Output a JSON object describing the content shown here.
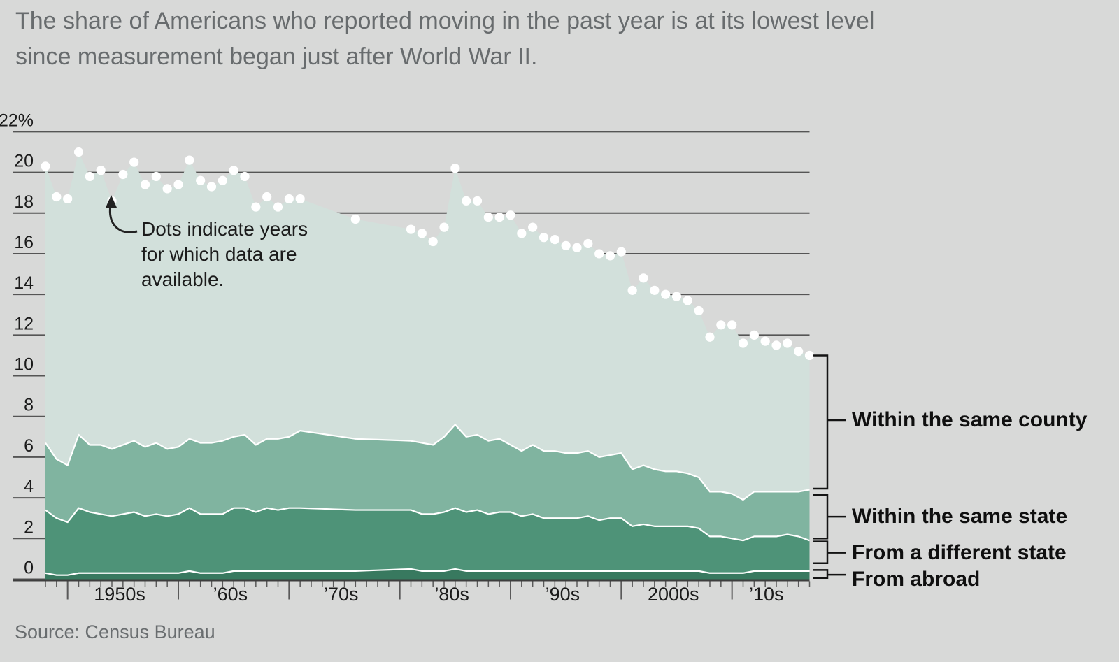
{
  "page": {
    "background_color": "#d8d9d8",
    "title": "The share of Americans who reported moving in the past year is at its lowest level\nsince measurement began just after World War II.",
    "source": "Source: Census Bureau"
  },
  "annotation": {
    "text": "Dots indicate years\nfor which data are\navailable."
  },
  "chart_data": {
    "type": "area",
    "stacked": true,
    "title": "The share of Americans who reported moving in the past year is at its lowest level since measurement began just after World War II.",
    "source": "Source: Census Bureau",
    "unit": "%",
    "grid": true,
    "legend_position": "right",
    "dots_note": "Dots indicate years for which data are available.",
    "x": [
      1948,
      1949,
      1950,
      1951,
      1952,
      1953,
      1954,
      1955,
      1956,
      1957,
      1958,
      1959,
      1960,
      1961,
      1962,
      1963,
      1964,
      1965,
      1966,
      1967,
      1968,
      1969,
      1970,
      1971,
      1972,
      1973,
      1974,
      1975,
      1976,
      1977,
      1978,
      1979,
      1980,
      1981,
      1982,
      1983,
      1984,
      1985,
      1986,
      1987,
      1988,
      1989,
      1990,
      1991,
      1992,
      1993,
      1994,
      1995,
      1996,
      1997,
      1998,
      1999,
      2000,
      2001,
      2002,
      2003,
      2004,
      2005,
      2006,
      2007,
      2008,
      2009,
      2010,
      2011,
      2012,
      2013,
      2014,
      2015,
      2016,
      2017
    ],
    "series": [
      {
        "name": "From abroad",
        "color": "#38795f",
        "values": [
          0.3,
          0.2,
          0.2,
          0.3,
          0.3,
          0.3,
          0.3,
          0.3,
          0.3,
          0.3,
          0.3,
          0.3,
          0.3,
          0.4,
          0.3,
          0.3,
          0.3,
          0.4,
          0.4,
          0.4,
          0.4,
          0.4,
          0.4,
          0.4,
          0.4,
          0.4,
          0.4,
          0.4,
          0.4,
          0.42,
          0.44,
          0.46,
          0.48,
          0.5,
          0.4,
          0.4,
          0.4,
          0.5,
          0.4,
          0.4,
          0.4,
          0.4,
          0.4,
          0.4,
          0.4,
          0.4,
          0.4,
          0.4,
          0.4,
          0.4,
          0.4,
          0.4,
          0.4,
          0.4,
          0.4,
          0.4,
          0.4,
          0.4,
          0.4,
          0.4,
          0.3,
          0.3,
          0.3,
          0.3,
          0.4,
          0.4,
          0.4,
          0.4,
          0.4,
          0.4
        ]
      },
      {
        "name": "From a different state",
        "color": "#4e9378",
        "values": [
          3.1,
          2.8,
          2.6,
          3.2,
          3.0,
          2.9,
          2.8,
          2.9,
          3.0,
          2.8,
          2.9,
          2.8,
          2.9,
          3.1,
          2.9,
          2.9,
          2.9,
          3.1,
          3.1,
          2.9,
          3.1,
          3.0,
          3.1,
          3.1,
          3.08,
          3.06,
          3.04,
          3.02,
          3.0,
          2.98,
          2.96,
          2.94,
          2.92,
          2.9,
          2.8,
          2.8,
          2.9,
          3.0,
          2.9,
          3.0,
          2.8,
          2.9,
          2.9,
          2.7,
          2.8,
          2.6,
          2.6,
          2.6,
          2.6,
          2.7,
          2.5,
          2.6,
          2.6,
          2.2,
          2.3,
          2.2,
          2.2,
          2.2,
          2.2,
          2.1,
          1.8,
          1.8,
          1.7,
          1.6,
          1.7,
          1.7,
          1.7,
          1.8,
          1.7,
          1.5
        ]
      },
      {
        "name": "Within the same state",
        "color": "#80b4a0",
        "values": [
          3.3,
          2.9,
          2.8,
          3.6,
          3.3,
          3.4,
          3.3,
          3.4,
          3.5,
          3.4,
          3.5,
          3.3,
          3.3,
          3.4,
          3.5,
          3.5,
          3.6,
          3.5,
          3.6,
          3.3,
          3.4,
          3.5,
          3.5,
          3.8,
          3.74,
          3.68,
          3.62,
          3.56,
          3.5,
          3.48,
          3.46,
          3.44,
          3.42,
          3.4,
          3.5,
          3.4,
          3.7,
          4.1,
          3.7,
          3.7,
          3.6,
          3.6,
          3.3,
          3.2,
          3.4,
          3.3,
          3.3,
          3.2,
          3.2,
          3.2,
          3.1,
          3.1,
          3.2,
          2.8,
          2.9,
          2.8,
          2.7,
          2.7,
          2.6,
          2.5,
          2.2,
          2.2,
          2.2,
          2.0,
          2.2,
          2.2,
          2.2,
          2.1,
          2.2,
          2.5
        ]
      },
      {
        "name": "Within the same county",
        "color": "#d2e0db",
        "values": [
          13.6,
          12.9,
          13.1,
          13.9,
          13.2,
          13.5,
          12.2,
          13.3,
          13.7,
          12.9,
          13.1,
          12.8,
          12.9,
          13.7,
          12.9,
          12.6,
          12.8,
          13.1,
          12.7,
          11.7,
          11.9,
          11.4,
          11.7,
          11.4,
          11.28,
          11.16,
          11.04,
          10.92,
          10.8,
          10.72,
          10.64,
          10.56,
          10.48,
          10.4,
          10.3,
          10.0,
          10.3,
          12.6,
          11.6,
          11.5,
          11.0,
          10.9,
          11.3,
          10.7,
          10.7,
          10.5,
          10.4,
          10.2,
          10.1,
          10.2,
          10.0,
          9.8,
          9.9,
          8.8,
          9.2,
          8.8,
          8.7,
          8.6,
          8.5,
          8.2,
          7.6,
          8.2,
          8.3,
          7.7,
          7.7,
          7.4,
          7.2,
          7.3,
          6.9,
          6.6
        ]
      }
    ],
    "dot_years": [
      1948,
      1949,
      1950,
      1951,
      1952,
      1953,
      1954,
      1955,
      1956,
      1957,
      1958,
      1959,
      1960,
      1961,
      1962,
      1963,
      1964,
      1965,
      1966,
      1967,
      1968,
      1969,
      1970,
      1971,
      1976,
      1981,
      1982,
      1983,
      1984,
      1985,
      1986,
      1987,
      1988,
      1989,
      1990,
      1991,
      1992,
      1993,
      1994,
      1995,
      1996,
      1997,
      1998,
      1999,
      2000,
      2001,
      2002,
      2003,
      2004,
      2005,
      2006,
      2007,
      2008,
      2009,
      2010,
      2011,
      2012,
      2013,
      2014,
      2015,
      2016,
      2017
    ],
    "y_axis": {
      "min": 0,
      "max": 22,
      "tick_step": 2,
      "tick_labels": [
        "0",
        "2",
        "4",
        "6",
        "8",
        "10",
        "12",
        "14",
        "16",
        "18",
        "20",
        "22%"
      ]
    },
    "x_axis": {
      "start": 1948,
      "end": 2017,
      "decade_ticks": [
        1950,
        1960,
        1970,
        1980,
        1990,
        2000,
        2010
      ],
      "labels": [
        {
          "text": "1950s",
          "center_year": 1954.7
        },
        {
          "text": "’60s",
          "center_year": 1964.7
        },
        {
          "text": "’70s",
          "center_year": 1974.7
        },
        {
          "text": "’80s",
          "center_year": 1984.7
        },
        {
          "text": "’90s",
          "center_year": 1994.7
        },
        {
          "text": "2000s",
          "center_year": 2004.7
        },
        {
          "text": "’10s",
          "center_year": 2013.1
        }
      ]
    },
    "legend_brackets": [
      {
        "label": "Within the same county",
        "from": 4.45,
        "to": 11.0,
        "tick_value": 7.82,
        "label_offset": 0
      },
      {
        "label": "Within the same state",
        "from": 2.0,
        "to": 4.15,
        "tick_value": 3.07,
        "label_offset": 0
      },
      {
        "label": "From a different state",
        "from": 0.78,
        "to": 1.85,
        "tick_value": 1.3,
        "label_offset": 0
      },
      {
        "label": "From abroad",
        "from": 0.06,
        "to": 0.45,
        "tick_value": 0.22,
        "label_offset": 7
      }
    ]
  }
}
